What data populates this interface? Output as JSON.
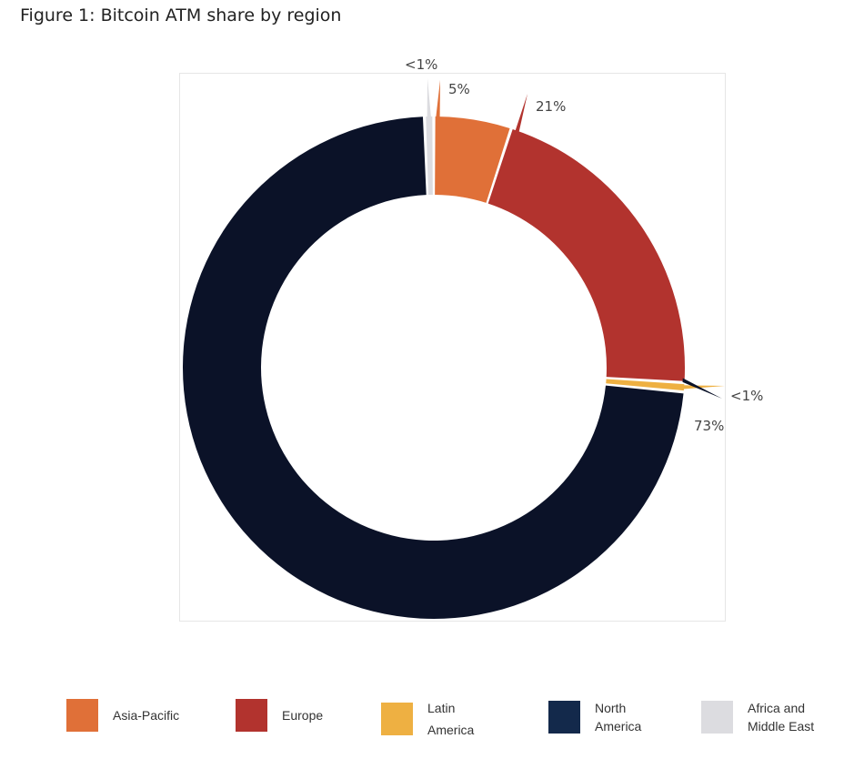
{
  "chart_data": {
    "type": "pie",
    "variant": "donut",
    "title": "Figure 1: Bitcoin ATM share by region",
    "slices": [
      {
        "name": "Asia-Pacific",
        "value": 5,
        "label": "5%",
        "color": "#e07038"
      },
      {
        "name": "Europe",
        "value": 21,
        "label": "21%",
        "color": "#b2332e"
      },
      {
        "name": "Latin America",
        "value": 0.6,
        "label": "<1%",
        "color": "#eeb042"
      },
      {
        "name": "North America",
        "value": 73,
        "label": "73%",
        "color": "#0b1228"
      },
      {
        "name": "Africa and Middle East",
        "value": 0.6,
        "label": "<1%",
        "color": "#dcdce0"
      }
    ],
    "legend": [
      {
        "line1": "Asia-Pacific",
        "line2": "",
        "color": "#e07038"
      },
      {
        "line1": "Europe",
        "line2": "",
        "color": "#b2332e"
      },
      {
        "line1": "Latin",
        "line2": "America",
        "color": "#eeb042"
      },
      {
        "line1": "North",
        "line2": "America",
        "color": "#13294b"
      },
      {
        "line1": "Africa and",
        "line2": "Middle East",
        "color": "#dcdce0"
      }
    ],
    "legend_position": "bottom"
  }
}
